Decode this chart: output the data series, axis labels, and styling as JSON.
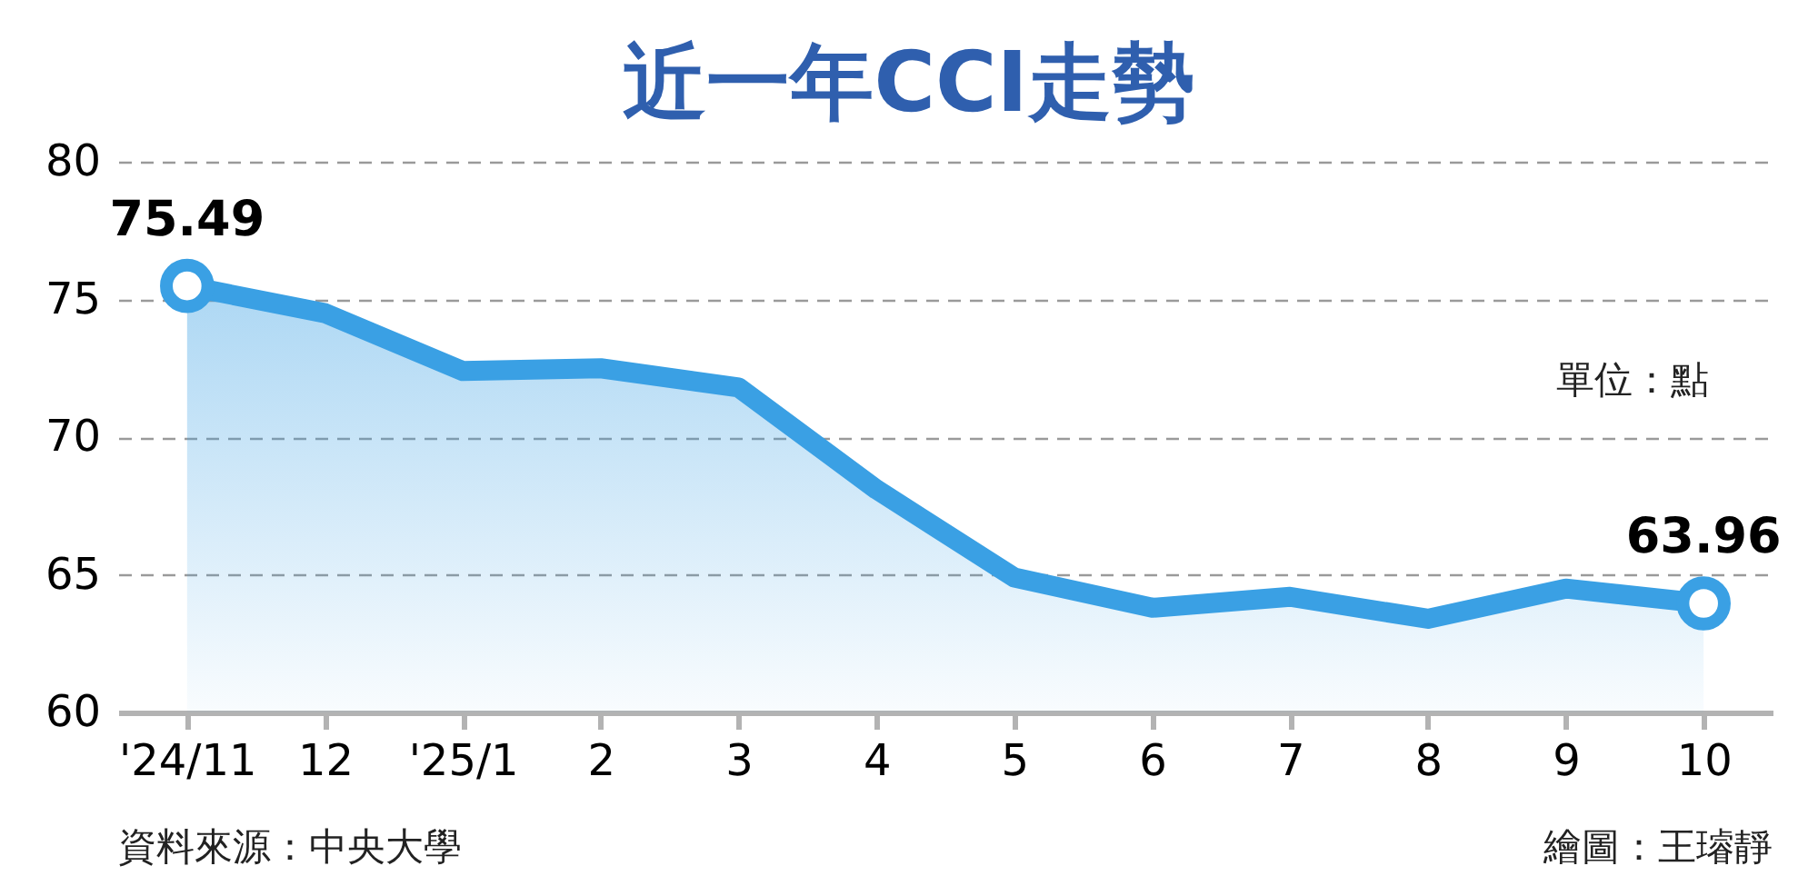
{
  "chart_data": {
    "type": "area",
    "title": "近一年CCI走勢",
    "categories": [
      "'24/11",
      "12",
      "'25/1",
      "2",
      "3",
      "4",
      "5",
      "6",
      "7",
      "8",
      "9",
      "10"
    ],
    "series": [
      {
        "color": "#3aa0e4",
        "values": [
          75.49,
          74.5,
          72.4,
          72.5,
          71.8,
          68.1,
          64.9,
          63.8,
          64.2,
          63.4,
          64.5,
          63.96
        ],
        "value_labels": [
          "75.49",
          null,
          null,
          null,
          null,
          null,
          null,
          null,
          null,
          null,
          null,
          "63.96"
        ]
      }
    ],
    "ylim": [
      60,
      80
    ],
    "yticks": [
      60,
      65,
      70,
      75,
      80
    ],
    "grid": "y",
    "annotations": [
      "單位：點",
      "資料來源：中央大學",
      "繪圖：王璿靜"
    ]
  }
}
